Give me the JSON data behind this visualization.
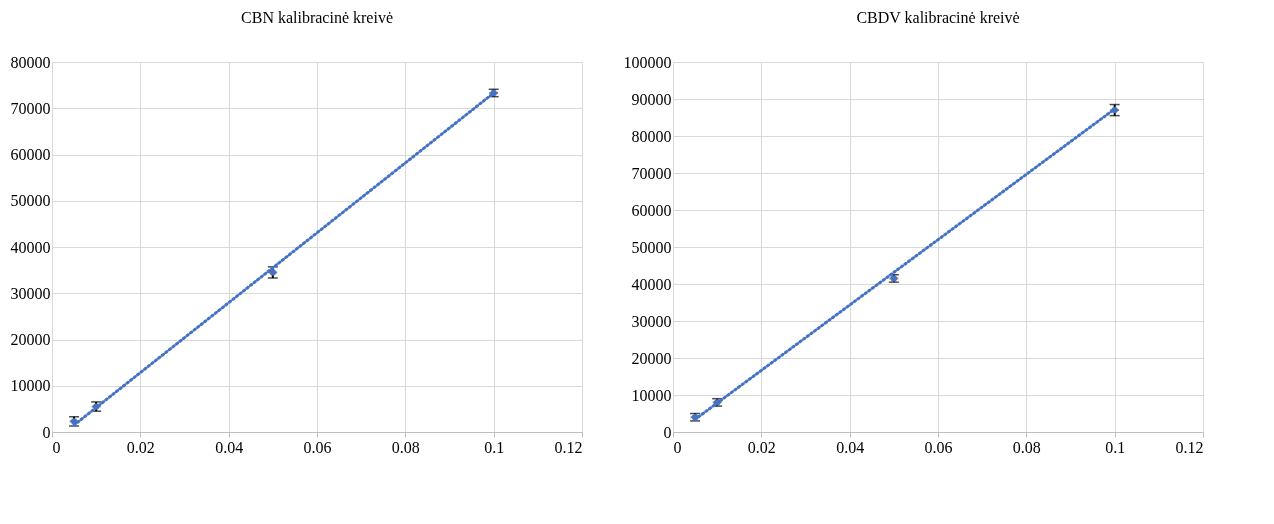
{
  "chart_data": [
    {
      "type": "scatter",
      "title": "CBN kalibracinė kreivė",
      "xlim": [
        0,
        0.12
      ],
      "xticks": [
        0,
        0.02,
        0.04,
        0.06,
        0.08,
        0.1,
        0.12
      ],
      "ylim": [
        0,
        80000
      ],
      "yticks": [
        0,
        10000,
        20000,
        30000,
        40000,
        50000,
        60000,
        70000,
        80000
      ],
      "grid": true,
      "legend": false,
      "series": [
        {
          "color": "#4472c4",
          "marker": "circle",
          "x": [
            0.005,
            0.01,
            0.05,
            0.1
          ],
          "values": [
            2300,
            5500,
            34500,
            73300
          ],
          "errors": [
            1000,
            1000,
            1200,
            800
          ],
          "xerrors": [
            0.001,
            0.001,
            0.001,
            0.001
          ]
        },
        {
          "type": "line",
          "color": "#4472c4",
          "marker": "none",
          "line_style": "dotted",
          "x": [
            0.005,
            0.1
          ],
          "values": [
            1500,
            73300
          ]
        }
      ]
    },
    {
      "type": "scatter",
      "title": "CBDV kalibracinė kreivė",
      "xlim": [
        0,
        0.12
      ],
      "xticks": [
        0,
        0.02,
        0.04,
        0.06,
        0.08,
        0.1,
        0.12
      ],
      "ylim": [
        0,
        100000
      ],
      "yticks": [
        0,
        10000,
        20000,
        30000,
        40000,
        50000,
        60000,
        70000,
        80000,
        90000,
        100000
      ],
      "grid": true,
      "legend": false,
      "series": [
        {
          "color": "#4472c4",
          "marker": "circle",
          "x": [
            0.005,
            0.01,
            0.05,
            0.1
          ],
          "values": [
            4000,
            8000,
            41500,
            87000
          ],
          "errors": [
            1000,
            1000,
            1000,
            1500
          ],
          "xerrors": [
            0.001,
            0.001,
            0.001,
            0.001
          ]
        },
        {
          "type": "line",
          "color": "#4472c4",
          "marker": "none",
          "line_style": "dotted",
          "x": [
            0.005,
            0.1
          ],
          "values": [
            3400,
            87300
          ]
        }
      ]
    }
  ]
}
